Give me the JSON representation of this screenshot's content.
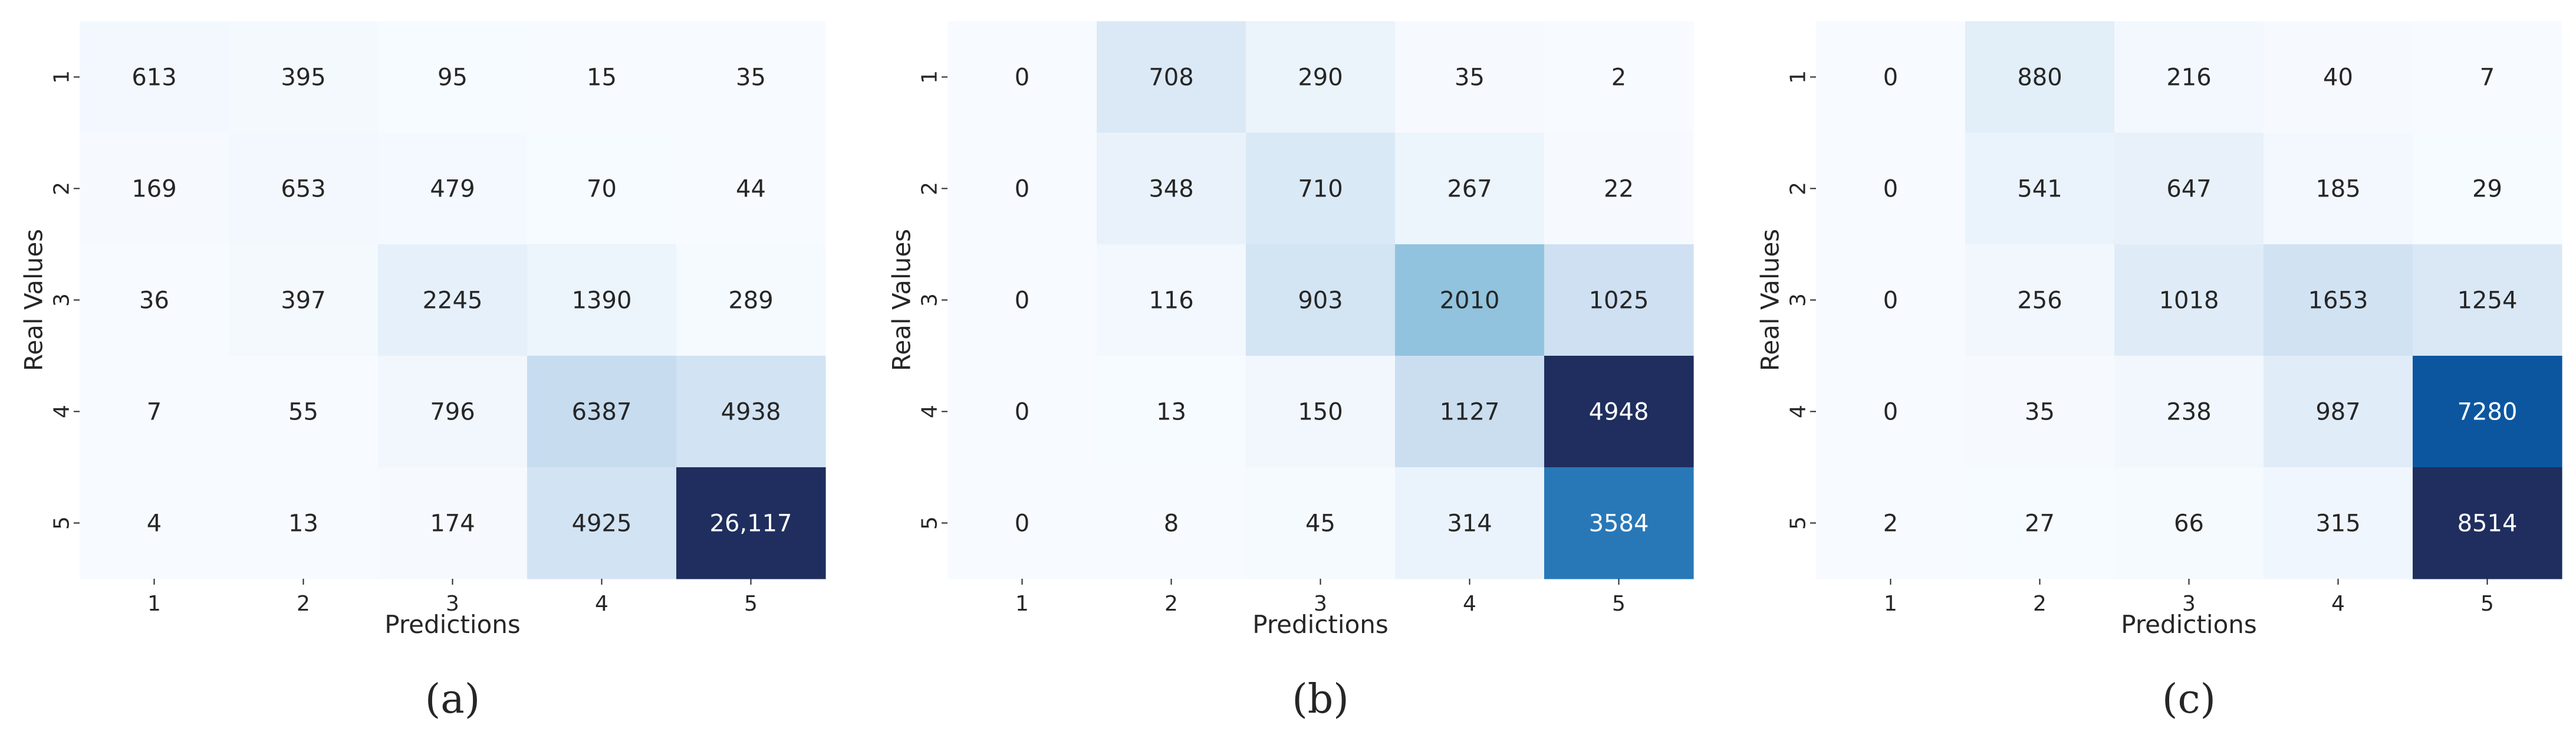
{
  "chart_data": [
    {
      "type": "heatmap",
      "panel_label": "(a)",
      "xlabel": "Predictions",
      "ylabel": "Real Values",
      "x_ticks": [
        "1",
        "2",
        "3",
        "4",
        "5"
      ],
      "y_ticks": [
        "1",
        "2",
        "3",
        "4",
        "5"
      ],
      "colormap": "Blues",
      "colorbar": false,
      "values": [
        [
          613,
          395,
          95,
          15,
          35
        ],
        [
          169,
          653,
          479,
          70,
          44
        ],
        [
          36,
          397,
          2245,
          1390,
          289
        ],
        [
          7,
          55,
          796,
          6387,
          4938
        ],
        [
          4,
          13,
          174,
          4925,
          26117
        ]
      ],
      "cell_labels": [
        [
          "613",
          "395",
          "95",
          "15",
          "35"
        ],
        [
          "169",
          "653",
          "479",
          "70",
          "44"
        ],
        [
          "36",
          "397",
          "2245",
          "1390",
          "289"
        ],
        [
          "7",
          "55",
          "796",
          "6387",
          "4938"
        ],
        [
          "4",
          "13",
          "174",
          "4925",
          "26,117"
        ]
      ]
    },
    {
      "type": "heatmap",
      "panel_label": "(b)",
      "xlabel": "Predictions",
      "ylabel": "Real Values",
      "x_ticks": [
        "1",
        "2",
        "3",
        "4",
        "5"
      ],
      "y_ticks": [
        "1",
        "2",
        "3",
        "4",
        "5"
      ],
      "colormap": "Blues",
      "colorbar": false,
      "values": [
        [
          0,
          708,
          290,
          35,
          2
        ],
        [
          0,
          348,
          710,
          267,
          22
        ],
        [
          0,
          116,
          903,
          2010,
          1025
        ],
        [
          0,
          13,
          150,
          1127,
          4948
        ],
        [
          0,
          8,
          45,
          314,
          3584
        ]
      ],
      "cell_labels": [
        [
          "0",
          "708",
          "290",
          "35",
          "2"
        ],
        [
          "0",
          "348",
          "710",
          "267",
          "22"
        ],
        [
          "0",
          "116",
          "903",
          "2010",
          "1025"
        ],
        [
          "0",
          "13",
          "150",
          "1127",
          "4948"
        ],
        [
          "0",
          "8",
          "45",
          "314",
          "3584"
        ]
      ]
    },
    {
      "type": "heatmap",
      "panel_label": "(c)",
      "xlabel": "Predictions",
      "ylabel": "Real Values",
      "x_ticks": [
        "1",
        "2",
        "3",
        "4",
        "5"
      ],
      "y_ticks": [
        "1",
        "2",
        "3",
        "4",
        "5"
      ],
      "colormap": "Blues",
      "colorbar": false,
      "values": [
        [
          0,
          880,
          216,
          40,
          7
        ],
        [
          0,
          541,
          647,
          185,
          29
        ],
        [
          0,
          256,
          1018,
          1653,
          1254
        ],
        [
          0,
          35,
          238,
          987,
          7280
        ],
        [
          2,
          27,
          66,
          315,
          8514
        ]
      ],
      "cell_labels": [
        [
          "0",
          "880",
          "216",
          "40",
          "7"
        ],
        [
          "0",
          "541",
          "647",
          "185",
          "29"
        ],
        [
          "0",
          "256",
          "1018",
          "1653",
          "1254"
        ],
        [
          "0",
          "35",
          "238",
          "987",
          "7280"
        ],
        [
          "2",
          "27",
          "66",
          "315",
          "8514"
        ]
      ]
    }
  ]
}
